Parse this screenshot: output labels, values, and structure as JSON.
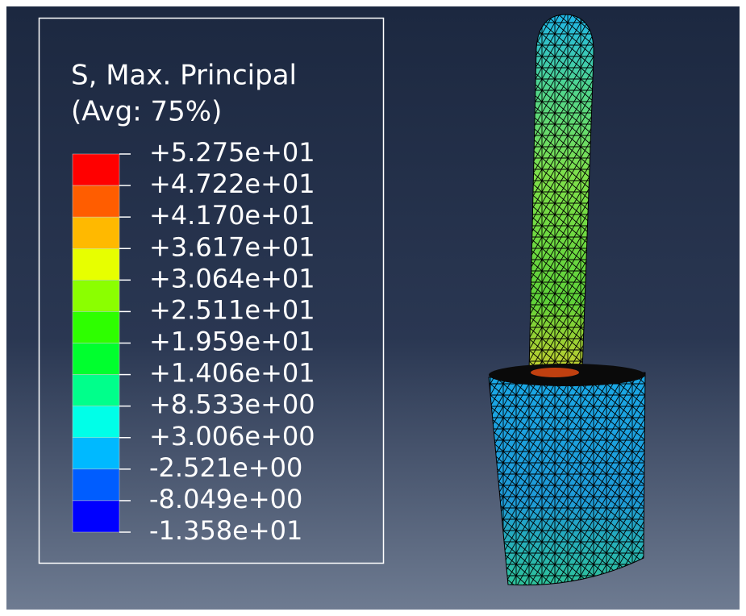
{
  "legend": {
    "title": "S, Max. Principal",
    "subtitle": "(Avg: 75%)",
    "labels": [
      "+5.275e+01",
      "+4.722e+01",
      "+4.170e+01",
      "+3.617e+01",
      "+3.064e+01",
      "+2.511e+01",
      "+1.959e+01",
      "+1.406e+01",
      "+8.533e+00",
      "+3.006e+00",
      "-2.521e+00",
      "-8.049e+00",
      "-1.358e+01"
    ],
    "colors": [
      "#ff0000",
      "#ff5d00",
      "#ffb900",
      "#e7ff00",
      "#8bff00",
      "#2eff00",
      "#00ff2e",
      "#00ff8b",
      "#00ffe8",
      "#00b9ff",
      "#005dff",
      "#0000ff"
    ]
  }
}
